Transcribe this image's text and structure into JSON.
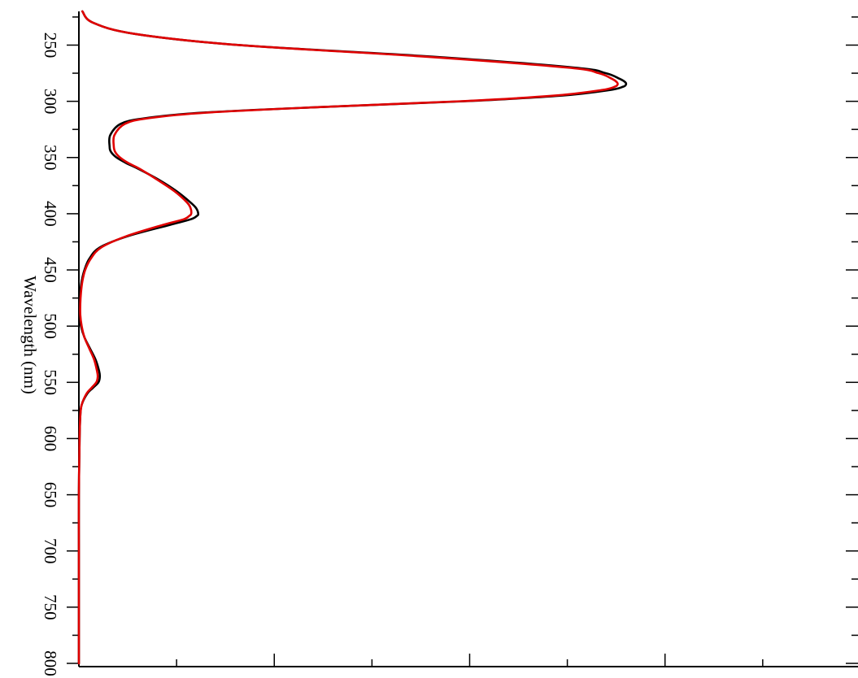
{
  "chart_data": {
    "type": "line",
    "orientation": "x-axis vertical on left, values increase to the right",
    "xlabel": "Wavelength (nm)",
    "ylabel": "",
    "xlim": [
      220,
      800
    ],
    "x_ticks": [
      250,
      300,
      350,
      400,
      450,
      500,
      550,
      600,
      650,
      700,
      750,
      800
    ],
    "ylim": [
      0,
      1
    ],
    "grid": false,
    "legend": "none",
    "series": [
      {
        "color": "#000000",
        "x": [
          220,
          230,
          240,
          250,
          260,
          270,
          275,
          280,
          283,
          285,
          287,
          290,
          295,
          300,
          305,
          310,
          315,
          320,
          330,
          340,
          345,
          350,
          355,
          360,
          370,
          380,
          390,
          395,
          400,
          402,
          405,
          410,
          420,
          430,
          440,
          450,
          460,
          470,
          480,
          490,
          500,
          510,
          520,
          530,
          540,
          545,
          550,
          555,
          560,
          570,
          580,
          600,
          650,
          700,
          750,
          800
        ],
        "y": [
          0.005,
          0.02,
          0.08,
          0.23,
          0.5,
          0.71,
          0.755,
          0.775,
          0.783,
          0.784,
          0.78,
          0.76,
          0.69,
          0.55,
          0.35,
          0.18,
          0.095,
          0.06,
          0.045,
          0.044,
          0.046,
          0.054,
          0.068,
          0.085,
          0.115,
          0.14,
          0.16,
          0.168,
          0.171,
          0.169,
          0.16,
          0.13,
          0.07,
          0.03,
          0.015,
          0.008,
          0.004,
          0.002,
          0.001,
          0.001,
          0.003,
          0.008,
          0.016,
          0.024,
          0.029,
          0.03,
          0.028,
          0.02,
          0.012,
          0.004,
          0.002,
          0.001,
          0.0,
          0.0,
          0.0,
          0.0
        ]
      },
      {
        "color": "#e00000",
        "x": [
          220,
          230,
          240,
          250,
          260,
          270,
          275,
          280,
          283,
          285,
          287,
          290,
          295,
          300,
          305,
          310,
          315,
          320,
          330,
          340,
          345,
          350,
          355,
          360,
          370,
          380,
          390,
          395,
          400,
          402,
          405,
          410,
          420,
          430,
          440,
          450,
          460,
          470,
          480,
          490,
          500,
          510,
          520,
          530,
          540,
          545,
          550,
          555,
          560,
          570,
          580,
          600,
          650,
          700,
          750,
          800
        ],
        "y": [
          0.005,
          0.02,
          0.08,
          0.23,
          0.49,
          0.7,
          0.745,
          0.764,
          0.771,
          0.772,
          0.768,
          0.749,
          0.68,
          0.545,
          0.35,
          0.185,
          0.1,
          0.066,
          0.051,
          0.05,
          0.052,
          0.059,
          0.071,
          0.087,
          0.113,
          0.137,
          0.155,
          0.16,
          0.161,
          0.158,
          0.15,
          0.12,
          0.068,
          0.032,
          0.017,
          0.009,
          0.005,
          0.003,
          0.002,
          0.002,
          0.004,
          0.008,
          0.015,
          0.022,
          0.026,
          0.027,
          0.025,
          0.018,
          0.011,
          0.004,
          0.002,
          0.001,
          0.0,
          0.0,
          0.0,
          0.0
        ]
      }
    ]
  }
}
